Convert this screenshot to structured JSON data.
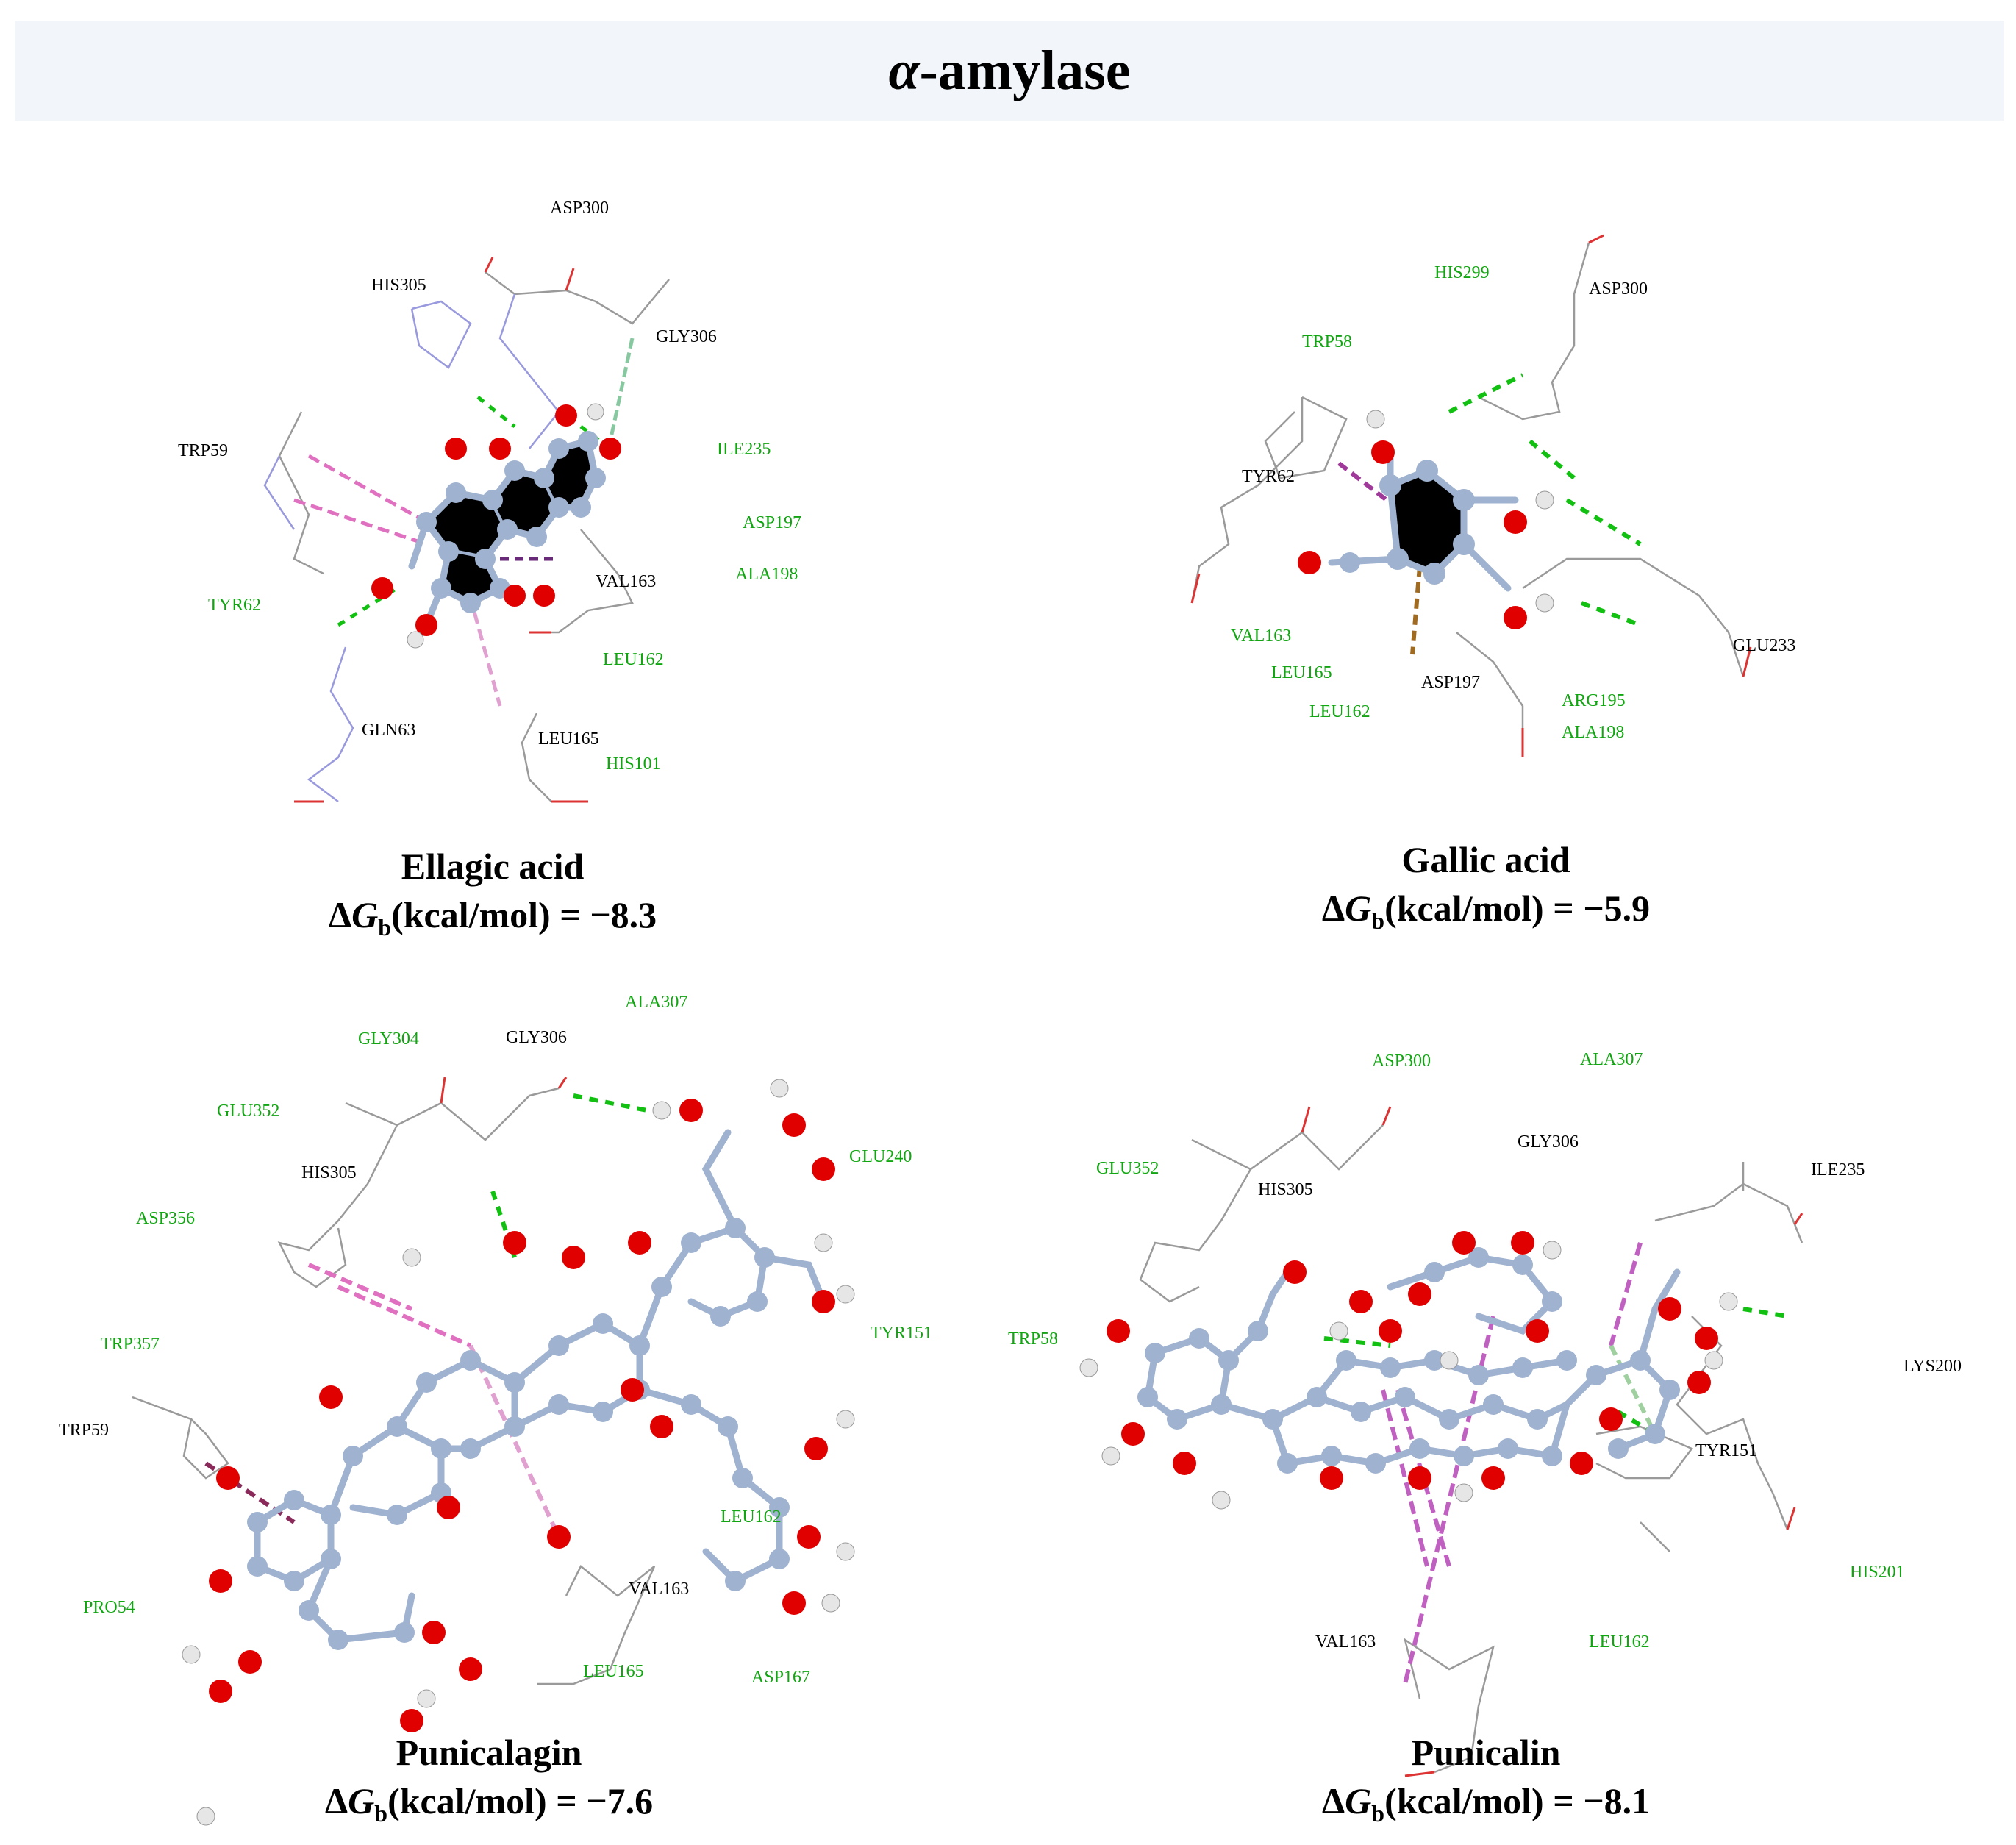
{
  "figure": {
    "title_prefix": "α",
    "title_suffix": "-amylase"
  },
  "colors": {
    "banner_bg": "#f2f6fb",
    "atom_carbon": "#9fb2cf",
    "atom_oxygen": "#e00000",
    "atom_hydrogen": "#e6e6e6",
    "hbond": "#11c011",
    "pi_alkyl": "#e070c0",
    "pi_sigma": "#8a2a9a",
    "label_black": "#000000",
    "label_green": "#11a511"
  },
  "panels": [
    {
      "id": "ellagic",
      "compound": "Ellagic acid",
      "delta_g_prefix": "Δ",
      "delta_g_symbol": "G",
      "delta_g_sub": "b",
      "delta_g_rest": "(kcal/mol) = −8.3",
      "residues_black": [
        "ASP300",
        "HIS305",
        "GLY306",
        "TRP59",
        "VAL163",
        "GLN63",
        "LEU165"
      ],
      "residues_green": [
        "ILE235",
        "ASP197",
        "ALA198",
        "TYR62",
        "LEU162",
        "HIS101"
      ]
    },
    {
      "id": "gallic",
      "compound": "Gallic acid",
      "delta_g_prefix": "Δ",
      "delta_g_symbol": "G",
      "delta_g_sub": "b",
      "delta_g_rest": "(kcal/mol) = −5.9",
      "residues_black": [
        "ASP300",
        "TYR62",
        "GLU233",
        "ASP197"
      ],
      "residues_green": [
        "HIS299",
        "TRP58",
        "VAL163",
        "LEU165",
        "LEU162",
        "ARG195",
        "ALA198"
      ]
    },
    {
      "id": "punicalagin",
      "compound": "Punicalagin",
      "delta_g_prefix": "Δ",
      "delta_g_symbol": "G",
      "delta_g_sub": "b",
      "delta_g_rest": "(kcal/mol) = −7.6",
      "residues_black": [
        "GLY306",
        "HIS305",
        "TRP59",
        "VAL163"
      ],
      "residues_green": [
        "ALA307",
        "GLY304",
        "GLU352",
        "ASP356",
        "TRP357",
        "PRO54",
        "GLU240",
        "TYR151",
        "LEU162",
        "LEU165",
        "ASP167"
      ]
    },
    {
      "id": "punicalin",
      "compound": "Punicalin",
      "delta_g_prefix": "Δ",
      "delta_g_symbol": "G",
      "delta_g_sub": "b",
      "delta_g_rest": "(kcal/mol) = −8.1",
      "residues_black": [
        "GLY306",
        "HIS305",
        "ILE235",
        "LYS200",
        "TYR151",
        "VAL163"
      ],
      "residues_green": [
        "ASP300",
        "ALA307",
        "GLU352",
        "TRP58",
        "HIS201",
        "LEU162"
      ]
    }
  ]
}
